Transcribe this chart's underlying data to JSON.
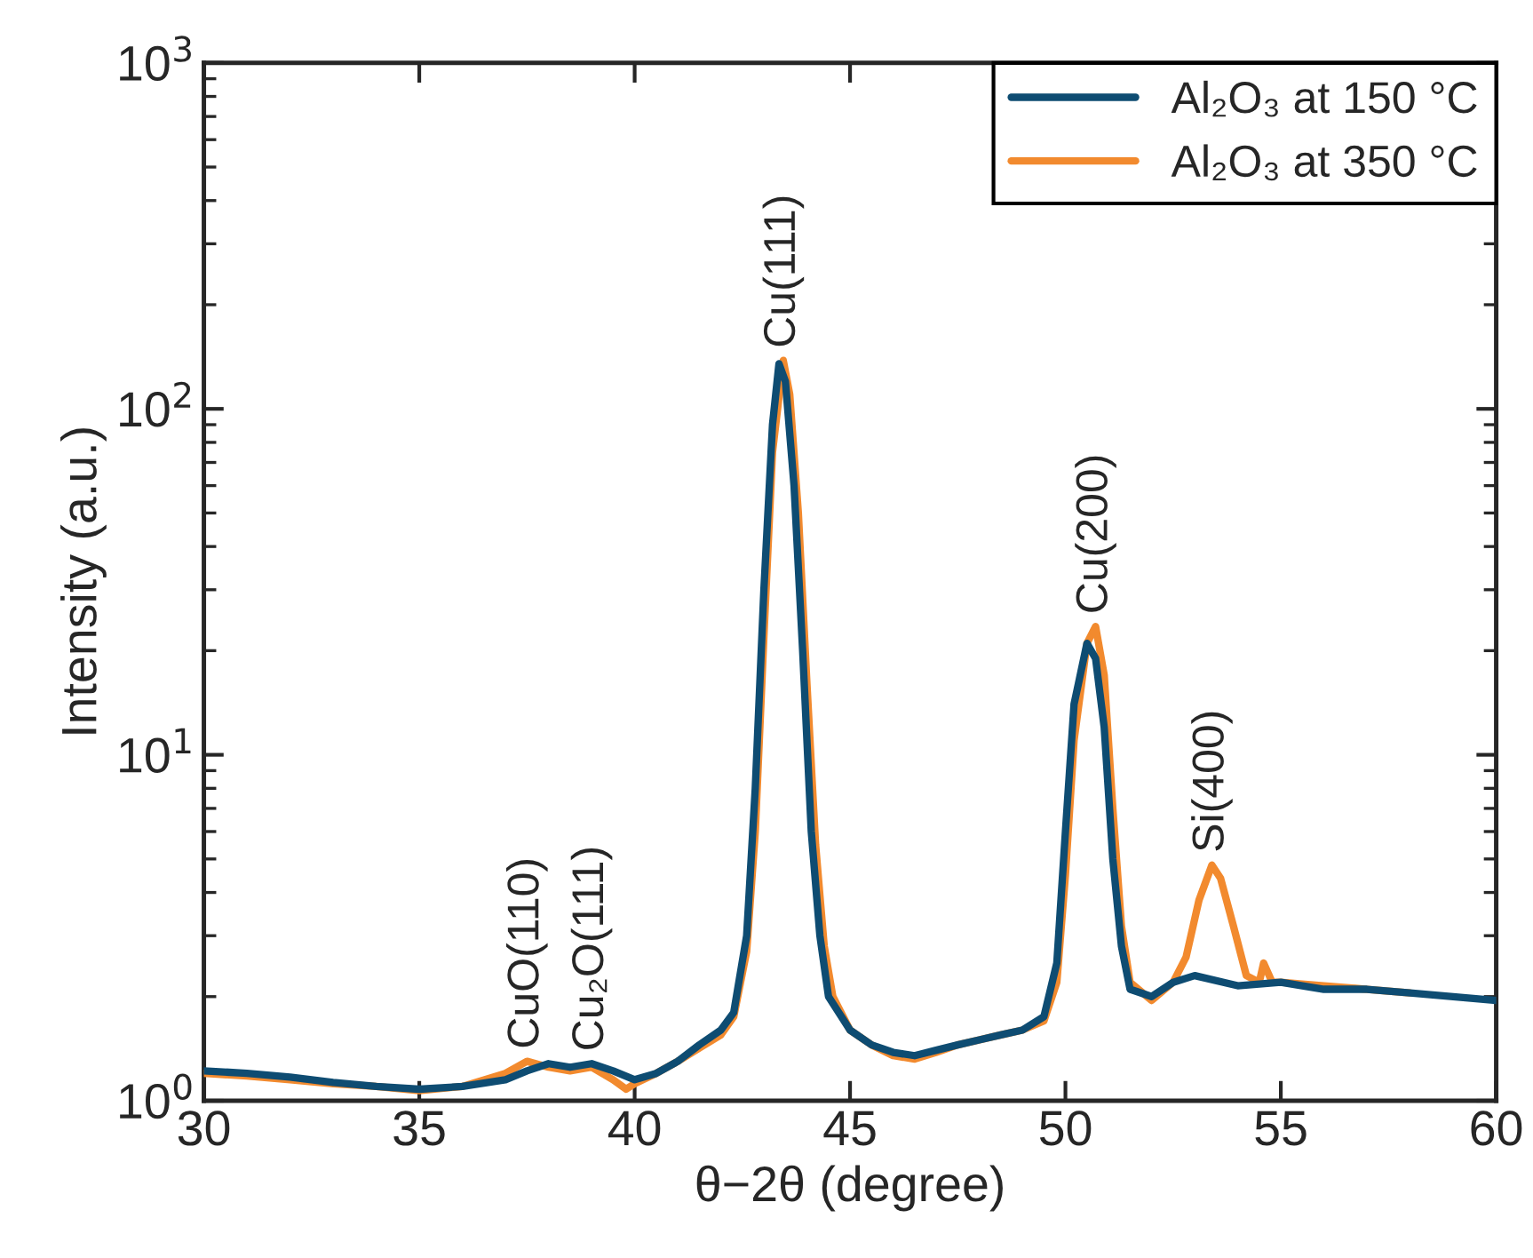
{
  "chart_data": {
    "type": "line",
    "xlabel": "θ−2θ (degree)",
    "ylabel": "Intensity (a.u.)",
    "log": "y",
    "xlim": [
      30,
      60
    ],
    "xticks": [
      30,
      35,
      40,
      45,
      50,
      55,
      60
    ],
    "ylim": [
      1,
      1000
    ],
    "yticks": [
      {
        "value": 1,
        "label": "10$^{0}$"
      },
      {
        "value": 10,
        "label": "10$^{1}$"
      },
      {
        "value": 100,
        "label": "10$^{2}$"
      },
      {
        "value": 1000,
        "label": "10$^{3}$"
      }
    ],
    "legend": "top right",
    "grid": false,
    "line_style": "solid",
    "marker": "none",
    "series": [
      {
        "name": "Al₂O₃ at 150 °C",
        "color": "#0e4c72",
        "x": [
          30,
          31,
          32,
          33,
          34,
          35,
          36,
          37,
          37.5,
          38,
          38.5,
          39,
          39.5,
          40,
          40.5,
          41,
          41.5,
          42,
          42.3,
          42.6,
          42.8,
          43,
          43.2,
          43.35,
          43.5,
          43.7,
          43.9,
          44.1,
          44.3,
          44.5,
          45,
          45.5,
          46,
          46.5,
          47,
          47.5,
          48,
          48.5,
          49,
          49.5,
          49.8,
          50,
          50.2,
          50.5,
          50.7,
          50.9,
          51.1,
          51.3,
          51.5,
          52,
          52.5,
          53,
          54,
          55,
          56,
          57,
          58,
          59,
          60
        ],
        "values": [
          1.22,
          1.2,
          1.17,
          1.13,
          1.1,
          1.08,
          1.1,
          1.15,
          1.22,
          1.28,
          1.25,
          1.28,
          1.22,
          1.15,
          1.2,
          1.3,
          1.45,
          1.6,
          1.8,
          3,
          8,
          30,
          90,
          135,
          120,
          60,
          20,
          6,
          3,
          2,
          1.6,
          1.45,
          1.38,
          1.35,
          1.4,
          1.45,
          1.5,
          1.55,
          1.6,
          1.75,
          2.5,
          6,
          14,
          21,
          19,
          12,
          5,
          2.8,
          2.1,
          2.0,
          2.2,
          2.3,
          2.15,
          2.2,
          2.1,
          2.1,
          2.05,
          2.0,
          1.95
        ]
      },
      {
        "name": "Al₂O₃ at 350 °C",
        "color": "#f28a2e",
        "x": [
          30,
          31,
          32,
          33,
          34,
          35,
          36,
          37,
          37.5,
          38,
          38.5,
          39,
          39.5,
          39.8,
          40,
          40.5,
          41,
          41.5,
          42,
          42.3,
          42.6,
          42.8,
          43,
          43.2,
          43.45,
          43.6,
          43.8,
          44.0,
          44.2,
          44.4,
          44.6,
          45,
          45.5,
          46,
          46.5,
          47,
          47.5,
          48,
          48.5,
          49,
          49.5,
          49.8,
          50,
          50.2,
          50.5,
          50.7,
          50.9,
          51.1,
          51.3,
          51.5,
          52,
          52.5,
          52.8,
          53.1,
          53.4,
          53.6,
          53.9,
          54.2,
          54.5,
          54.6,
          54.8,
          55,
          56,
          57,
          58
        ],
        "values": [
          1.2,
          1.18,
          1.15,
          1.12,
          1.1,
          1.07,
          1.1,
          1.2,
          1.3,
          1.25,
          1.22,
          1.25,
          1.15,
          1.08,
          1.12,
          1.2,
          1.3,
          1.42,
          1.55,
          1.75,
          2.7,
          6,
          22,
          75,
          138,
          110,
          50,
          16,
          5.5,
          2.8,
          2.0,
          1.6,
          1.45,
          1.35,
          1.32,
          1.38,
          1.45,
          1.5,
          1.55,
          1.6,
          1.7,
          2.2,
          4.5,
          11,
          21,
          23.5,
          17,
          7,
          3.2,
          2.2,
          1.95,
          2.2,
          2.6,
          3.8,
          4.8,
          4.4,
          3.2,
          2.3,
          2.2,
          2.5,
          2.2,
          2.2,
          2.15,
          2.1,
          2.05
        ]
      }
    ],
    "annotations": [
      {
        "text": "CuO(110)",
        "x": 37.5,
        "y": 1.3
      },
      {
        "text": "Cu₂O(111)",
        "x": 39,
        "y": 1.28
      },
      {
        "text": "Cu(111)",
        "x": 43.45,
        "y": 138
      },
      {
        "text": "Cu(200)",
        "x": 50.7,
        "y": 23.5
      },
      {
        "text": "Si(400)",
        "x": 53.4,
        "y": 4.8
      }
    ]
  }
}
